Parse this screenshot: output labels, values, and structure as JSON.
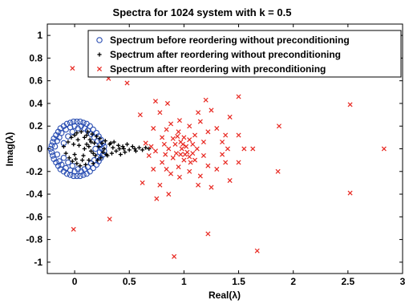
{
  "chart_data": {
    "type": "scatter",
    "title": "Spectra for 1024 system with k = 0.5",
    "xlabel": "Real(λ)",
    "ylabel": "Imag(λ)",
    "xlim": [
      -0.25,
      3.0
    ],
    "ylim": [
      -1.1,
      1.1
    ],
    "xticks": [
      0,
      0.5,
      1,
      1.5,
      2,
      2.5,
      3
    ],
    "xtick_labels": [
      "0",
      "0.5",
      "1",
      "1.5",
      "2",
      "2.5",
      "3"
    ],
    "yticks": [
      1,
      0.8,
      0.6,
      0.4,
      0.2,
      0,
      -0.2,
      -0.4,
      -0.6,
      -0.8,
      -1
    ],
    "ytick_labels": [
      "1",
      "0.8",
      "0.6",
      "0.4",
      "0.2",
      "0",
      "-0.2",
      "-0.4",
      "-0.6",
      "-0.8",
      "-1"
    ],
    "grid": false,
    "legend_position": "top-right",
    "series": [
      {
        "name": "Spectrum before reordering without preconditioning",
        "marker": "circle",
        "color": "#2b4fb3",
        "points": [
          [
            -0.22,
            0.0
          ],
          [
            -0.21,
            0.03
          ],
          [
            -0.21,
            -0.03
          ],
          [
            -0.2,
            0.06
          ],
          [
            -0.2,
            -0.06
          ],
          [
            -0.19,
            0.09
          ],
          [
            -0.19,
            -0.09
          ],
          [
            -0.17,
            0.12
          ],
          [
            -0.17,
            -0.12
          ],
          [
            -0.15,
            0.15
          ],
          [
            -0.15,
            -0.15
          ],
          [
            -0.13,
            0.18
          ],
          [
            -0.13,
            -0.18
          ],
          [
            -0.1,
            0.2
          ],
          [
            -0.1,
            -0.2
          ],
          [
            -0.07,
            0.22
          ],
          [
            -0.07,
            -0.22
          ],
          [
            -0.04,
            0.23
          ],
          [
            -0.04,
            -0.23
          ],
          [
            -0.01,
            0.24
          ],
          [
            -0.01,
            -0.24
          ],
          [
            0.02,
            0.24
          ],
          [
            0.02,
            -0.24
          ],
          [
            0.05,
            0.24
          ],
          [
            0.05,
            -0.24
          ],
          [
            0.08,
            0.23
          ],
          [
            0.08,
            -0.23
          ],
          [
            0.11,
            0.22
          ],
          [
            0.11,
            -0.22
          ],
          [
            0.14,
            0.2
          ],
          [
            0.14,
            -0.2
          ],
          [
            0.17,
            0.17
          ],
          [
            0.17,
            -0.17
          ],
          [
            0.2,
            0.14
          ],
          [
            0.2,
            -0.14
          ],
          [
            0.22,
            0.11
          ],
          [
            0.22,
            -0.11
          ],
          [
            0.24,
            0.08
          ],
          [
            0.24,
            -0.08
          ],
          [
            0.26,
            0.05
          ],
          [
            0.26,
            -0.05
          ],
          [
            0.27,
            0.02
          ],
          [
            0.27,
            -0.02
          ],
          [
            -0.18,
            0.02
          ],
          [
            -0.16,
            0.07
          ],
          [
            -0.16,
            -0.05
          ],
          [
            -0.14,
            0.1
          ],
          [
            -0.14,
            -0.11
          ],
          [
            -0.12,
            0.14
          ],
          [
            -0.12,
            -0.14
          ],
          [
            -0.1,
            0.05
          ],
          [
            -0.1,
            -0.08
          ],
          [
            -0.08,
            0.17
          ],
          [
            -0.08,
            -0.17
          ],
          [
            -0.06,
            0.11
          ],
          [
            -0.06,
            -0.12
          ],
          [
            -0.04,
            0.19
          ],
          [
            -0.04,
            -0.19
          ],
          [
            -0.02,
            0.15
          ],
          [
            -0.02,
            -0.15
          ],
          [
            0.0,
            0.2
          ],
          [
            0.0,
            -0.2
          ],
          [
            0.03,
            0.18
          ],
          [
            0.03,
            -0.18
          ],
          [
            0.06,
            0.2
          ],
          [
            0.06,
            -0.2
          ],
          [
            0.09,
            0.18
          ],
          [
            0.09,
            -0.18
          ],
          [
            0.12,
            0.16
          ],
          [
            0.12,
            -0.16
          ],
          [
            0.15,
            0.13
          ],
          [
            0.15,
            -0.13
          ],
          [
            0.18,
            0.1
          ],
          [
            0.18,
            -0.1
          ],
          [
            0.21,
            0.07
          ],
          [
            0.21,
            -0.07
          ],
          [
            0.23,
            0.03
          ],
          [
            0.23,
            -0.03
          ],
          [
            0.19,
            0.0
          ],
          [
            0.25,
            0.0
          ]
        ]
      },
      {
        "name": "Spectrum after reordering without preconditioning",
        "marker": "plus",
        "color": "#000000",
        "points": [
          [
            -0.1,
            0.02
          ],
          [
            -0.08,
            -0.04
          ],
          [
            -0.06,
            0.06
          ],
          [
            -0.05,
            -0.08
          ],
          [
            -0.03,
            0.1
          ],
          [
            -0.02,
            -0.11
          ],
          [
            0.0,
            0.12
          ],
          [
            0.0,
            -0.05
          ],
          [
            0.02,
            0.14
          ],
          [
            0.02,
            -0.13
          ],
          [
            0.04,
            0.03
          ],
          [
            0.05,
            -0.15
          ],
          [
            0.06,
            0.15
          ],
          [
            0.08,
            -0.06
          ],
          [
            0.09,
            0.1
          ],
          [
            0.1,
            -0.14
          ],
          [
            0.11,
            0.04
          ],
          [
            0.12,
            0.15
          ],
          [
            0.13,
            -0.1
          ],
          [
            0.14,
            0.08
          ],
          [
            0.15,
            -0.02
          ],
          [
            0.16,
            0.13
          ],
          [
            0.17,
            -0.13
          ],
          [
            0.18,
            0.05
          ],
          [
            0.19,
            -0.06
          ],
          [
            0.2,
            0.11
          ],
          [
            0.21,
            -0.1
          ],
          [
            0.22,
            0.02
          ],
          [
            0.23,
            0.09
          ],
          [
            0.24,
            -0.08
          ],
          [
            0.25,
            0.05
          ],
          [
            0.26,
            -0.03
          ],
          [
            0.28,
            0.07
          ],
          [
            0.3,
            -0.06
          ],
          [
            0.32,
            0.04
          ],
          [
            0.34,
            -0.04
          ],
          [
            0.36,
            0.06
          ],
          [
            0.38,
            -0.02
          ],
          [
            0.4,
            0.03
          ],
          [
            0.42,
            -0.05
          ],
          [
            0.44,
            0.02
          ],
          [
            0.46,
            -0.03
          ],
          [
            0.48,
            0.04
          ],
          [
            0.5,
            -0.01
          ],
          [
            0.53,
            0.02
          ],
          [
            0.56,
            -0.02
          ],
          [
            0.59,
            0.01
          ],
          [
            0.62,
            -0.01
          ],
          [
            0.65,
            0.01
          ],
          [
            0.68,
            0.0
          ],
          [
            0.03,
            0.08
          ],
          [
            0.07,
            -0.1
          ],
          [
            0.11,
            0.12
          ],
          [
            0.15,
            0.06
          ],
          [
            -0.01,
            0.04
          ],
          [
            0.01,
            -0.09
          ],
          [
            0.09,
            0.0
          ],
          [
            0.13,
            0.02
          ],
          [
            0.17,
            -0.04
          ],
          [
            0.27,
            0.0
          ],
          [
            0.35,
            0.01
          ],
          [
            0.45,
            0.0
          ],
          [
            0.55,
            0.0
          ],
          [
            0.29,
            -0.05
          ],
          [
            0.33,
            0.05
          ],
          [
            0.41,
            0.0
          ]
        ]
      },
      {
        "name": "Spectrum after reordering with preconditioning",
        "marker": "x",
        "color": "#e8261f",
        "points": [
          [
            -0.02,
            0.71
          ],
          [
            -0.01,
            -0.71
          ],
          [
            0.31,
            0.62
          ],
          [
            0.32,
            -0.62
          ],
          [
            0.48,
            0.58
          ],
          [
            0.91,
            -0.95
          ],
          [
            0.86,
            -0.4
          ],
          [
            0.85,
            0.4
          ],
          [
            1.2,
            0.43
          ],
          [
            1.22,
            -0.75
          ],
          [
            1.67,
            -0.9
          ],
          [
            1.5,
            0.46
          ],
          [
            1.87,
            0.2
          ],
          [
            1.86,
            -0.2
          ],
          [
            2.52,
            0.39
          ],
          [
            2.52,
            -0.39
          ],
          [
            2.83,
            0.0
          ],
          [
            1.63,
            0.0
          ],
          [
            1.55,
            0.0
          ],
          [
            1.5,
            0.12
          ],
          [
            1.5,
            -0.12
          ],
          [
            1.42,
            0.28
          ],
          [
            1.42,
            -0.28
          ],
          [
            0.6,
            0.3
          ],
          [
            0.62,
            -0.3
          ],
          [
            0.72,
            0.18
          ],
          [
            0.72,
            -0.18
          ],
          [
            0.65,
            0.05
          ],
          [
            0.68,
            -0.06
          ],
          [
            0.78,
            0.32
          ],
          [
            0.78,
            -0.32
          ],
          [
            1.3,
            0.18
          ],
          [
            1.3,
            -0.18
          ],
          [
            1.35,
            0.06
          ],
          [
            1.35,
            -0.05
          ],
          [
            1.25,
            0.34
          ],
          [
            1.25,
            -0.34
          ],
          [
            0.8,
            0.1
          ],
          [
            0.8,
            -0.12
          ],
          [
            1.15,
            0.24
          ],
          [
            1.15,
            -0.24
          ],
          [
            0.88,
            0.22
          ],
          [
            0.88,
            -0.22
          ],
          [
            1.1,
            0.12
          ],
          [
            1.1,
            -0.1
          ],
          [
            0.95,
            0.15
          ],
          [
            0.95,
            -0.16
          ],
          [
            1.05,
            0.08
          ],
          [
            1.05,
            -0.07
          ],
          [
            0.92,
            0.04
          ],
          [
            0.93,
            -0.04
          ],
          [
            1.0,
            0.1
          ],
          [
            1.0,
            -0.1
          ],
          [
            0.98,
            0.0
          ],
          [
            1.02,
            0.02
          ],
          [
            1.03,
            -0.03
          ],
          [
            0.97,
            0.06
          ],
          [
            0.97,
            -0.05
          ],
          [
            0.9,
            0.09
          ],
          [
            0.9,
            -0.08
          ],
          [
            1.08,
            0.04
          ],
          [
            1.08,
            -0.04
          ],
          [
            1.12,
            0.0
          ],
          [
            0.86,
            0.0
          ],
          [
            0.94,
            0.11
          ],
          [
            1.06,
            -0.12
          ],
          [
            0.99,
            0.04
          ],
          [
            1.01,
            -0.05
          ],
          [
            1.18,
            0.06
          ],
          [
            1.18,
            -0.06
          ],
          [
            0.82,
            0.04
          ],
          [
            0.83,
            -0.05
          ],
          [
            1.4,
            0.0
          ],
          [
            1.38,
            0.12
          ],
          [
            1.38,
            -0.12
          ],
          [
            0.7,
            0.02
          ],
          [
            0.74,
            -0.02
          ],
          [
            1.22,
            0.15
          ],
          [
            1.22,
            -0.15
          ],
          [
            0.84,
            0.17
          ],
          [
            0.84,
            -0.18
          ],
          [
            1.05,
            0.2
          ],
          [
            1.05,
            -0.2
          ],
          [
            0.96,
            0.25
          ],
          [
            0.96,
            -0.25
          ],
          [
            1.13,
            0.32
          ],
          [
            1.13,
            -0.32
          ],
          [
            0.74,
            0.42
          ],
          [
            0.75,
            -0.44
          ]
        ]
      }
    ]
  }
}
